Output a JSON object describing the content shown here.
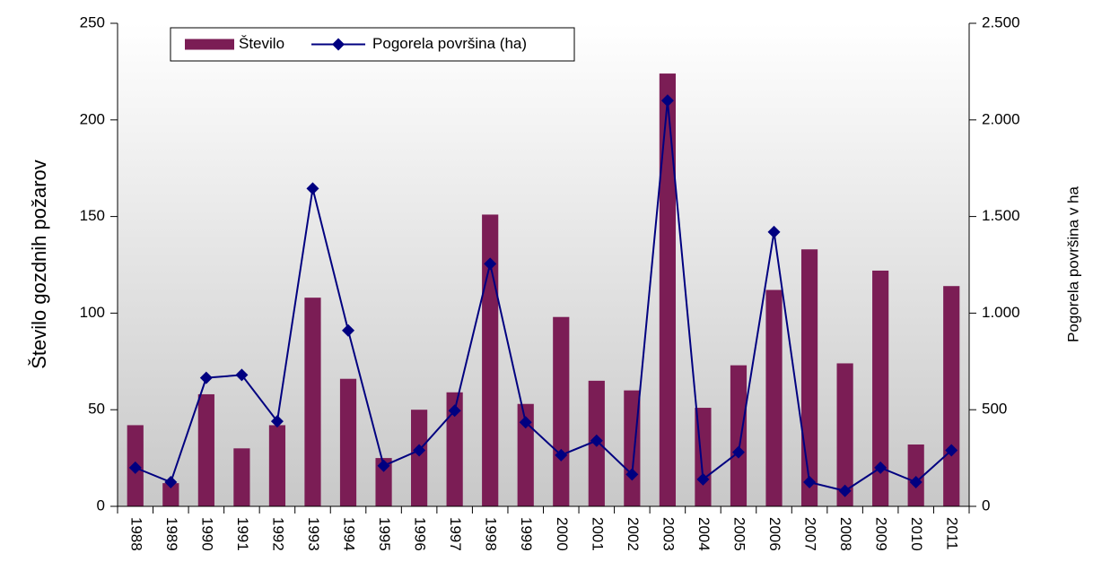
{
  "chart_data": {
    "type": "bar_line",
    "ylabel": "Število gozdnih požarov",
    "y2label": "Pogorela površina v ha",
    "categories": [
      "1988",
      "1989",
      "1990",
      "1991",
      "1992",
      "1993",
      "1994",
      "1995",
      "1996",
      "1997",
      "1998",
      "1999",
      "2000",
      "2001",
      "2002",
      "2003",
      "2004",
      "2005",
      "2006",
      "2007",
      "2008",
      "2009",
      "2010",
      "2011"
    ],
    "series": [
      {
        "name": "Število",
        "type": "bar",
        "color": "#7b1d55",
        "values": [
          42,
          12,
          58,
          30,
          42,
          108,
          66,
          25,
          50,
          59,
          151,
          53,
          98,
          65,
          60,
          224,
          51,
          73,
          112,
          133,
          74,
          122,
          32,
          114
        ]
      },
      {
        "name": "Pogorela površina (ha)",
        "type": "line",
        "axis": "y2",
        "color": "#000080",
        "values": [
          200,
          125,
          665,
          680,
          440,
          1645,
          910,
          210,
          290,
          495,
          1255,
          435,
          265,
          340,
          165,
          2100,
          140,
          280,
          1420,
          125,
          80,
          200,
          125,
          290
        ]
      }
    ],
    "ylim": [
      0,
      250
    ],
    "yticks": [
      0,
      50,
      100,
      150,
      200,
      250
    ],
    "y2lim": [
      0,
      2500
    ],
    "y2ticks": [
      0,
      500,
      {
        "value": 1000,
        "label": "1.000"
      },
      {
        "value": 1500,
        "label": "1.500"
      },
      {
        "value": 2000,
        "label": "2.000"
      },
      {
        "value": 2500,
        "label": "2.500"
      }
    ],
    "legend": "top-left"
  }
}
